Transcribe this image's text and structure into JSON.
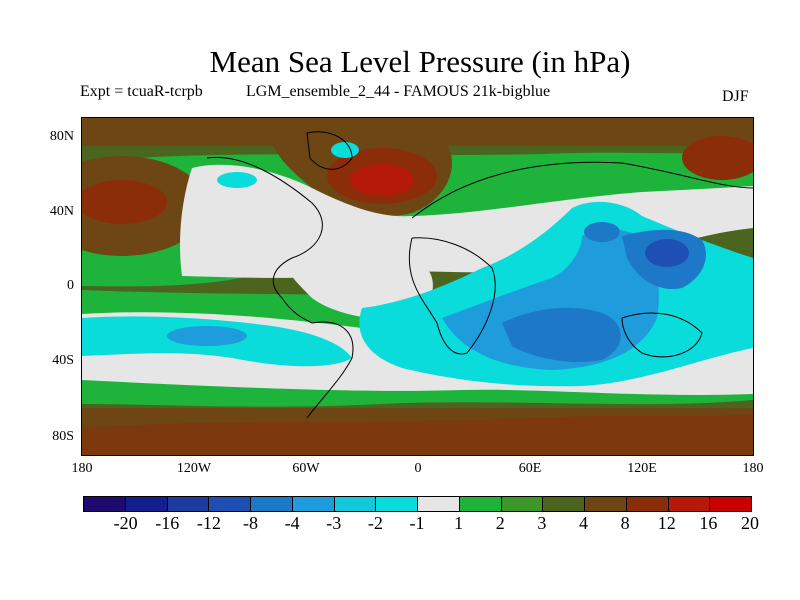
{
  "title": "Mean Sea Level Pressure (in hPa)",
  "expt_label": "Expt = tcuaR-tcrpb",
  "run_label": "LGM_ensemble_2_44 - FAMOUS 21k-bigblue",
  "season": "DJF",
  "lat_labels": [
    "80N",
    "40N",
    "0",
    "40S",
    "80S"
  ],
  "lon_labels": [
    "180",
    "120W",
    "60W",
    "0",
    "60E",
    "120E",
    "180"
  ],
  "colorbar": {
    "labels": [
      "-20",
      "-16",
      "-12",
      "-8",
      "-4",
      "-3",
      "-2",
      "-1",
      "1",
      "2",
      "3",
      "4",
      "8",
      "12",
      "16",
      "20"
    ],
    "colors": [
      "#1e0a6e",
      "#141e8c",
      "#1e3ca0",
      "#1e50b4",
      "#1e78c8",
      "#1e9cdc",
      "#14c8dc",
      "#0adcdc",
      "#e6e6e6",
      "#1eb43c",
      "#3c9628",
      "#4b641e",
      "#6e4614",
      "#8c2d0a",
      "#b4190a",
      "#c80000"
    ]
  }
}
